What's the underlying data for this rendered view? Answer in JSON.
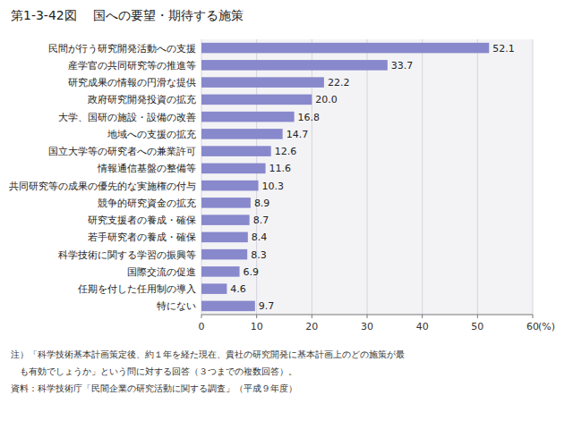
{
  "chart_data": {
    "type": "bar",
    "orientation": "horizontal",
    "title": "第1-3-42図　 国への要望・期待する施策",
    "categories": [
      "民間が行う研究開発活動への支援",
      "産学官の共同研究等の推進等",
      "研究成果の情報の円滑な提供",
      "政府研究開発投資の拡充",
      "大学、国研の施設・設備の改善",
      "地域への支援の拡充",
      "国立大学等の研究者への兼業許可",
      "情報通信基盤の整備等",
      "共同研究等の成果の優先的な実施権の付与",
      "競争的研究資金の拡充",
      "研究支援者の養成・確保",
      "若手研究者の養成・確保",
      "科学技術に関する学習の振興等",
      "国際交流の促進",
      "任期を付した任用制の導入",
      "特にない"
    ],
    "values": [
      52.1,
      33.7,
      22.2,
      20.0,
      16.8,
      14.7,
      12.6,
      11.6,
      10.3,
      8.9,
      8.7,
      8.4,
      8.3,
      6.9,
      4.6,
      9.7
    ],
    "value_labels": [
      "52.1",
      "33.7",
      "22.2",
      "20.0",
      "16.8",
      "14.7",
      "12.6",
      "11.6",
      "10.3",
      "8.9",
      "8.7",
      "8.4",
      "8.3",
      "6.9",
      "4.6",
      "9.7"
    ],
    "data_labels": true,
    "color": "#8888cc",
    "xlabel": "(%)",
    "xlim": [
      0,
      60
    ],
    "xticks": [
      0,
      10,
      20,
      30,
      40,
      50,
      60
    ],
    "grid": true,
    "annotations": [
      "注）「科学技術基本計画策定後、約１年を経た現在、貴社の研究開発に基本計画上のどの施策が最",
      "　も有効でしょうか」という問に対する回答（３つまでの複数回答）。",
      "資料：科学技術庁「民間企業の研究活動に関する調査」（平成９年度）"
    ]
  }
}
